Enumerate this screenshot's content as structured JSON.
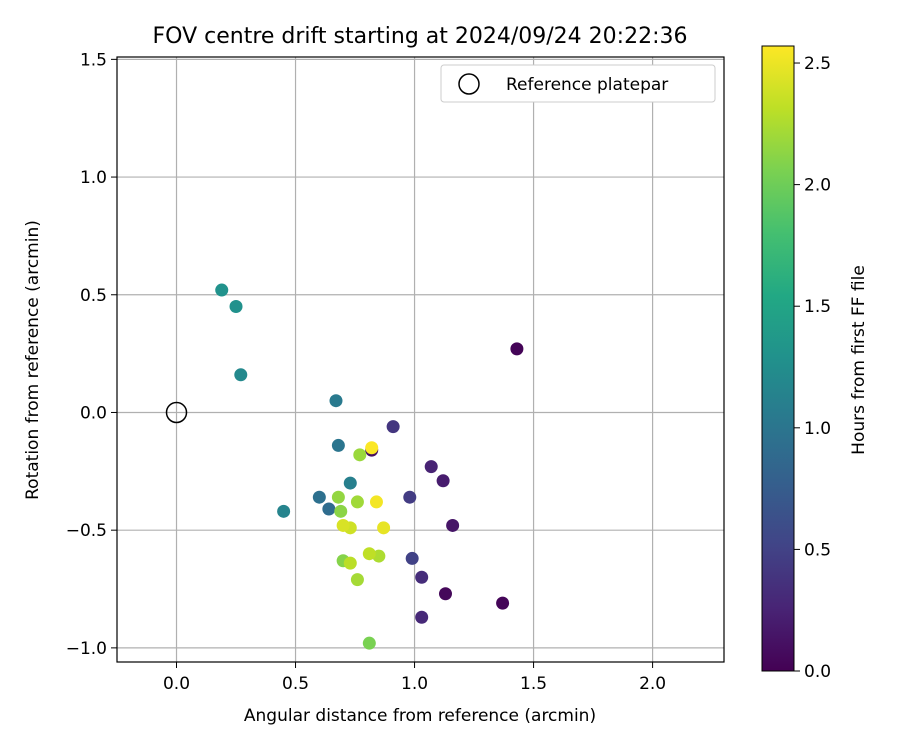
{
  "chart_data": {
    "type": "scatter",
    "title": "FOV centre drift starting at 2024/09/24 20:22:36",
    "xlabel": "Angular distance from reference (arcmin)",
    "ylabel": "Rotation from reference (arcmin)",
    "xlim": [
      -0.25,
      2.3
    ],
    "ylim": [
      -1.06,
      1.51
    ],
    "xticks": [
      0.0,
      0.5,
      1.0,
      1.5,
      2.0
    ],
    "xtick_labels": [
      "0.0",
      "0.5",
      "1.0",
      "1.5",
      "2.0"
    ],
    "yticks": [
      -1.0,
      -0.5,
      0.0,
      0.5,
      1.0,
      1.5
    ],
    "ytick_labels": [
      "−1.0",
      "−0.5",
      "0.0",
      "0.5",
      "1.0",
      "1.5"
    ],
    "grid": true,
    "legend": {
      "position": "top-right",
      "entries": [
        "Reference platepar"
      ]
    },
    "reference_point": {
      "x": 0.0,
      "y": 0.0
    },
    "colorbar": {
      "label": "Hours from first FF file",
      "colormap": "viridis",
      "range": [
        0.0,
        2.57
      ],
      "ticks": [
        0.0,
        0.5,
        1.0,
        1.5,
        2.0,
        2.5
      ],
      "tick_labels": [
        "0.0",
        "0.5",
        "1.0",
        "1.5",
        "2.0",
        "2.5"
      ]
    },
    "points": [
      {
        "x": 1.43,
        "y": 0.27,
        "c": 0.02
      },
      {
        "x": 1.37,
        "y": -0.81,
        "c": 0.03
      },
      {
        "x": 1.13,
        "y": -0.77,
        "c": 0.05
      },
      {
        "x": 0.82,
        "y": -0.16,
        "c": 0.1
      },
      {
        "x": 1.16,
        "y": -0.48,
        "c": 0.15
      },
      {
        "x": 1.12,
        "y": -0.29,
        "c": 0.2
      },
      {
        "x": 1.07,
        "y": -0.23,
        "c": 0.25
      },
      {
        "x": 1.03,
        "y": -0.87,
        "c": 0.3
      },
      {
        "x": 1.03,
        "y": -0.7,
        "c": 0.33
      },
      {
        "x": 0.91,
        "y": -0.06,
        "c": 0.4
      },
      {
        "x": 0.98,
        "y": -0.36,
        "c": 0.45
      },
      {
        "x": 0.99,
        "y": -0.62,
        "c": 0.5
      },
      {
        "x": 0.64,
        "y": -0.41,
        "c": 0.9
      },
      {
        "x": 0.6,
        "y": -0.36,
        "c": 0.95
      },
      {
        "x": 0.68,
        "y": -0.14,
        "c": 1.0
      },
      {
        "x": 0.67,
        "y": 0.05,
        "c": 1.05
      },
      {
        "x": 0.73,
        "y": -0.3,
        "c": 1.1
      },
      {
        "x": 0.45,
        "y": -0.42,
        "c": 1.15
      },
      {
        "x": 0.27,
        "y": 0.16,
        "c": 1.2
      },
      {
        "x": 0.25,
        "y": 0.45,
        "c": 1.28
      },
      {
        "x": 0.19,
        "y": 0.52,
        "c": 1.3
      },
      {
        "x": 0.81,
        "y": -0.98,
        "c": 2.05
      },
      {
        "x": 0.7,
        "y": -0.63,
        "c": 2.1
      },
      {
        "x": 0.69,
        "y": -0.42,
        "c": 2.12
      },
      {
        "x": 0.68,
        "y": -0.36,
        "c": 2.15
      },
      {
        "x": 0.77,
        "y": -0.18,
        "c": 2.18
      },
      {
        "x": 0.76,
        "y": -0.38,
        "c": 2.2
      },
      {
        "x": 0.76,
        "y": -0.71,
        "c": 2.22
      },
      {
        "x": 0.85,
        "y": -0.61,
        "c": 2.25
      },
      {
        "x": 0.73,
        "y": -0.64,
        "c": 2.3
      },
      {
        "x": 0.81,
        "y": -0.6,
        "c": 2.32
      },
      {
        "x": 0.73,
        "y": -0.49,
        "c": 2.38
      },
      {
        "x": 0.7,
        "y": -0.48,
        "c": 2.42
      },
      {
        "x": 0.87,
        "y": -0.49,
        "c": 2.48
      },
      {
        "x": 0.84,
        "y": -0.38,
        "c": 2.53
      },
      {
        "x": 0.82,
        "y": -0.15,
        "c": 2.56
      }
    ]
  }
}
